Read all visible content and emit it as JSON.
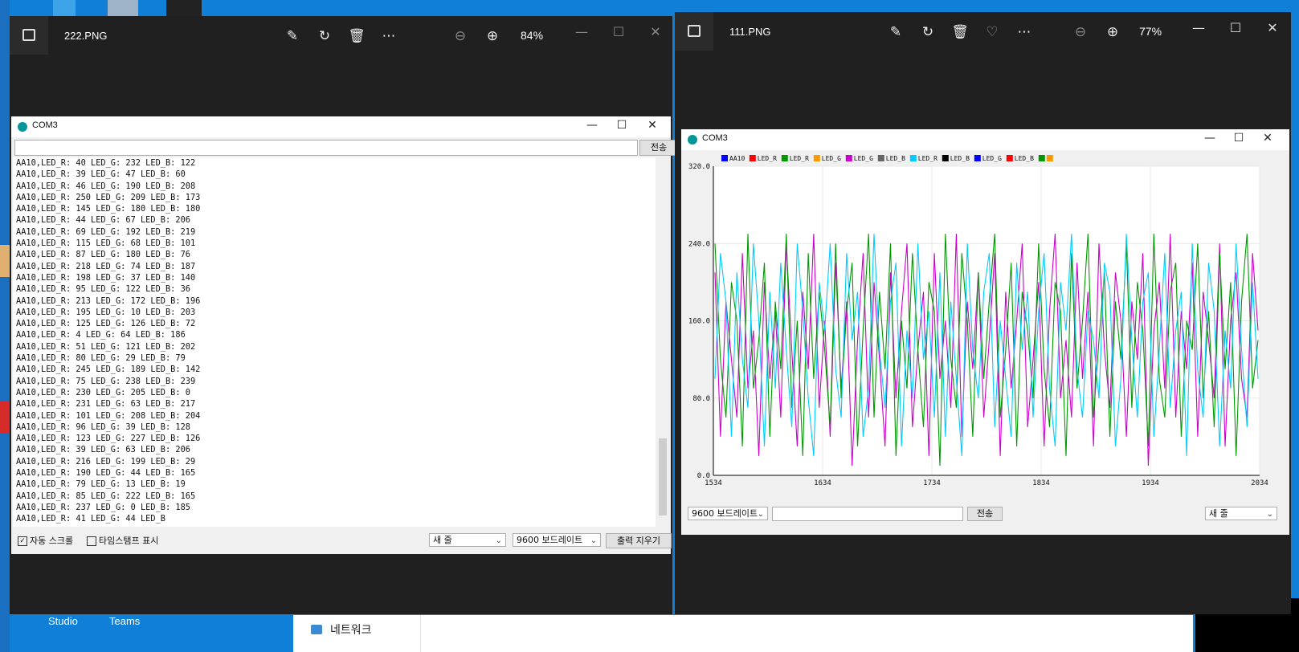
{
  "desktop": {
    "icons": [
      {
        "label": "Studio"
      },
      {
        "label": "Teams"
      }
    ],
    "explorer_item": "네트워크"
  },
  "viewer_left": {
    "title": "222.PNG",
    "zoom": "84%"
  },
  "viewer_right": {
    "title": "111.PNG",
    "zoom": "77%"
  },
  "serial_monitor": {
    "title": "COM3",
    "send_label": "전송",
    "input_value": "",
    "lines": [
      "AA10,LED_R: 40 LED_G: 232 LED_B: 122",
      "AA10,LED_R: 39 LED_G: 47 LED_B: 60",
      "AA10,LED_R: 46 LED_G: 190 LED_B: 208",
      "AA10,LED_R: 250 LED_G: 209 LED_B: 173",
      "AA10,LED_R: 145 LED_G: 180 LED_B: 180",
      "AA10,LED_R: 44 LED_G: 67 LED_B: 206",
      "AA10,LED_R: 69 LED_G: 192 LED_B: 219",
      "AA10,LED_R: 115 LED_G: 68 LED_B: 101",
      "AA10,LED_R: 87 LED_G: 180 LED_B: 76",
      "AA10,LED_R: 218 LED_G: 74 LED_B: 187",
      "AA10,LED_R: 198 LED_G: 37 LED_B: 140",
      "AA10,LED_R: 95 LED_G: 122 LED_B: 36",
      "AA10,LED_R: 213 LED_G: 172 LED_B: 196",
      "AA10,LED_R: 195 LED_G: 10 LED_B: 203",
      "AA10,LED_R: 125 LED_G: 126 LED_B: 72",
      "AA10,LED_R: 4 LED_G: 64 LED_B: 186",
      "AA10,LED_R: 51 LED_G: 121 LED_B: 202",
      "AA10,LED_R: 80 LED_G: 29 LED_B: 79",
      "AA10,LED_R: 245 LED_G: 189 LED_B: 142",
      "AA10,LED_R: 75 LED_G: 238 LED_B: 239",
      "AA10,LED_R: 230 LED_G: 205 LED_B: 0",
      "AA10,LED_R: 231 LED_G: 63 LED_B: 217",
      "AA10,LED_R: 101 LED_G: 208 LED_B: 204",
      "AA10,LED_R: 96 LED_G: 39 LED_B: 128",
      "AA10,LED_R: 123 LED_G: 227 LED_B: 126",
      "AA10,LED_R: 39 LED_G: 63 LED_B: 206",
      "AA10,LED_R: 216 LED_G: 199 LED_B: 29",
      "AA10,LED_R: 190 LED_G: 44 LED_B: 165",
      "AA10,LED_R: 79 LED_G: 13 LED_B: 19",
      "AA10,LED_R: 85 LED_G: 222 LED_B: 165",
      "AA10,LED_R: 237 LED_G: 0 LED_B: 185",
      "AA10,LED_R: 41 LED_G: 44 LED_B"
    ],
    "autoscroll_label": "자동 스크롤",
    "autoscroll_checked": true,
    "timestamp_label": "타임스탬프 표시",
    "timestamp_checked": false,
    "line_ending": "새 줄",
    "baud": "9600 보드레이트",
    "clear_label": "출력 지우기"
  },
  "serial_plotter": {
    "title": "COM3",
    "baud": "9600 보드레이트",
    "send_label": "전송",
    "line_ending": "새 줄",
    "input_value": ""
  },
  "chart_data": {
    "type": "line",
    "legend_position": "top-left",
    "legend": [
      {
        "name": "AA10",
        "color": "#0000ff"
      },
      {
        "name": "LED_R",
        "color": "#ff0000"
      },
      {
        "name": "LED_R",
        "color": "#009900"
      },
      {
        "name": "LED_G",
        "color": "#ff9900"
      },
      {
        "name": "LED_G",
        "color": "#cc00cc"
      },
      {
        "name": "LED_B",
        "color": "#666666"
      },
      {
        "name": "LED_R",
        "color": "#00ccff"
      },
      {
        "name": "LED_B",
        "color": "#000000"
      },
      {
        "name": "LED_G",
        "color": "#0000ff"
      },
      {
        "name": "LED_B",
        "color": "#ff0000"
      },
      {
        "name": "",
        "color": "#009900"
      },
      {
        "name": "",
        "color": "#ff9900"
      }
    ],
    "legend_labels_shown": [
      "AA10",
      "LED_R",
      "LED_R",
      "LED_G",
      "LED_G",
      "LED_B",
      "LED_R",
      "LED_B",
      "LED_G",
      "LED_B"
    ],
    "x_ticks": [
      "1534",
      "1634",
      "1734",
      "1834",
      "1934",
      "2034"
    ],
    "y_ticks": [
      "0.0",
      "80.0",
      "160.0",
      "240.0",
      "320.0"
    ],
    "xlim": [
      1534,
      2034
    ],
    "ylim": [
      0,
      320
    ],
    "grid": true,
    "series": [
      {
        "color": "#cc00cc",
        "values": [
          210,
          40,
          180,
          120,
          60,
          230,
          90,
          150,
          20,
          200,
          100,
          170,
          60,
          240,
          130,
          30,
          190,
          110,
          250,
          70,
          160,
          40,
          220,
          90,
          180,
          10,
          140,
          230,
          60,
          200,
          120,
          30,
          210,
          80,
          170,
          240,
          50,
          130,
          190,
          20,
          230,
          100,
          160,
          70,
          250,
          40,
          180,
          110,
          210,
          60,
          140,
          230,
          20,
          190,
          90,
          160,
          240,
          50,
          120,
          200,
          30,
          170,
          250,
          80,
          140,
          60,
          220,
          100,
          190,
          30,
          240,
          130,
          70,
          210,
          160,
          40,
          180,
          120,
          230,
          10,
          150,
          200,
          90,
          250,
          60,
          170,
          110,
          220,
          40,
          190,
          140,
          80,
          240,
          30,
          160,
          210,
          100,
          60,
          230,
          150
        ]
      },
      {
        "color": "#009900",
        "values": [
          240,
          120,
          60,
          200,
          160,
          30,
          250,
          90,
          140,
          220,
          40,
          180,
          110,
          250,
          70,
          160,
          20,
          230,
          100,
          190,
          130,
          50,
          240,
          80,
          170,
          220,
          30,
          150,
          250,
          60,
          190,
          110,
          240,
          20,
          160,
          90,
          230,
          130,
          50,
          200,
          170,
          10,
          250,
          120,
          70,
          230,
          160,
          40,
          210,
          100,
          180,
          250,
          60,
          130,
          220,
          30,
          190,
          150,
          80,
          240,
          110,
          50,
          200,
          170,
          20,
          230,
          90,
          160,
          250,
          60,
          140,
          210,
          40,
          180,
          120,
          240,
          70,
          200,
          150,
          30,
          250,
          100,
          60,
          190,
          220,
          40,
          160,
          130,
          240,
          80,
          170,
          50,
          230,
          110,
          200,
          20,
          180,
          250,
          90,
          140
        ]
      },
      {
        "color": "#00ccff",
        "values": [
          100,
          230,
          180,
          40,
          210,
          120,
          70,
          240,
          160,
          30,
          190,
          90,
          220,
          130,
          50,
          240,
          170,
          80,
          20,
          200,
          150,
          240,
          110,
          60,
          230,
          140,
          190,
          40,
          90,
          250,
          130,
          70,
          180,
          220,
          30,
          150,
          80,
          240,
          120,
          170,
          60,
          210,
          40,
          180,
          100,
          20,
          240,
          130,
          80,
          190,
          230,
          50,
          160,
          100,
          40,
          220,
          130,
          190,
          60,
          170,
          230,
          90,
          30,
          200,
          150,
          250,
          110,
          60,
          170,
          140,
          80,
          220,
          190,
          30,
          100,
          250,
          140,
          60,
          180,
          210,
          40,
          130,
          230,
          70,
          150,
          190,
          20,
          240,
          110,
          60,
          220,
          170,
          30,
          150,
          90,
          240,
          130,
          50,
          200,
          100
        ]
      }
    ]
  }
}
